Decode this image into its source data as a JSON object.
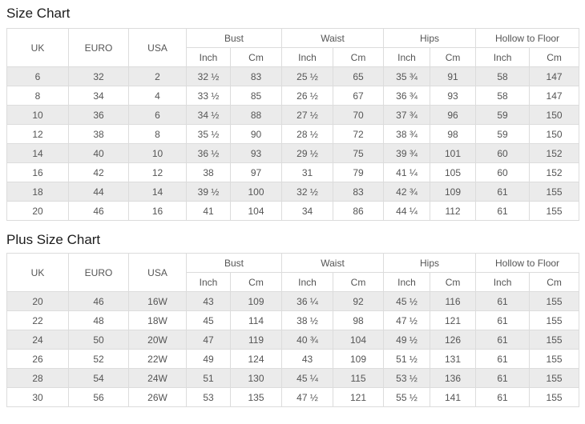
{
  "colors": {
    "page_background": "#ffffff",
    "row_stripe": "#ebebeb",
    "table_border": "#dcdcdc",
    "table_text": "#555555",
    "title_text": "#1c1c1c"
  },
  "chart_data": [
    {
      "type": "table",
      "title": "Size Chart",
      "headers": {
        "base": [
          "UK",
          "EURO",
          "USA"
        ],
        "groups": [
          "Bust",
          "Waist",
          "Hips",
          "Hollow to Floor"
        ],
        "subs": [
          "Inch",
          "Cm"
        ]
      },
      "rows": [
        [
          "6",
          "32",
          "2",
          "32 ½",
          "83",
          "25 ½",
          "65",
          "35 ¾",
          "91",
          "58",
          "147"
        ],
        [
          "8",
          "34",
          "4",
          "33 ½",
          "85",
          "26 ½",
          "67",
          "36 ¾",
          "93",
          "58",
          "147"
        ],
        [
          "10",
          "36",
          "6",
          "34 ½",
          "88",
          "27 ½",
          "70",
          "37 ¾",
          "96",
          "59",
          "150"
        ],
        [
          "12",
          "38",
          "8",
          "35 ½",
          "90",
          "28 ½",
          "72",
          "38 ¾",
          "98",
          "59",
          "150"
        ],
        [
          "14",
          "40",
          "10",
          "36 ½",
          "93",
          "29 ½",
          "75",
          "39 ¾",
          "101",
          "60",
          "152"
        ],
        [
          "16",
          "42",
          "12",
          "38",
          "97",
          "31",
          "79",
          "41 ¼",
          "105",
          "60",
          "152"
        ],
        [
          "18",
          "44",
          "14",
          "39 ½",
          "100",
          "32 ½",
          "83",
          "42 ¾",
          "109",
          "61",
          "155"
        ],
        [
          "20",
          "46",
          "16",
          "41",
          "104",
          "34",
          "86",
          "44 ¼",
          "112",
          "61",
          "155"
        ]
      ]
    },
    {
      "type": "table",
      "title": "Plus Size Chart",
      "headers": {
        "base": [
          "UK",
          "EURO",
          "USA"
        ],
        "groups": [
          "Bust",
          "Waist",
          "Hips",
          "Hollow to Floor"
        ],
        "subs": [
          "Inch",
          "Cm"
        ]
      },
      "rows": [
        [
          "20",
          "46",
          "16W",
          "43",
          "109",
          "36 ¼",
          "92",
          "45 ½",
          "116",
          "61",
          "155"
        ],
        [
          "22",
          "48",
          "18W",
          "45",
          "114",
          "38 ½",
          "98",
          "47 ½",
          "121",
          "61",
          "155"
        ],
        [
          "24",
          "50",
          "20W",
          "47",
          "119",
          "40 ¾",
          "104",
          "49 ½",
          "126",
          "61",
          "155"
        ],
        [
          "26",
          "52",
          "22W",
          "49",
          "124",
          "43",
          "109",
          "51 ½",
          "131",
          "61",
          "155"
        ],
        [
          "28",
          "54",
          "24W",
          "51",
          "130",
          "45 ¼",
          "115",
          "53 ½",
          "136",
          "61",
          "155"
        ],
        [
          "30",
          "56",
          "26W",
          "53",
          "135",
          "47 ½",
          "121",
          "55 ½",
          "141",
          "61",
          "155"
        ]
      ]
    }
  ]
}
